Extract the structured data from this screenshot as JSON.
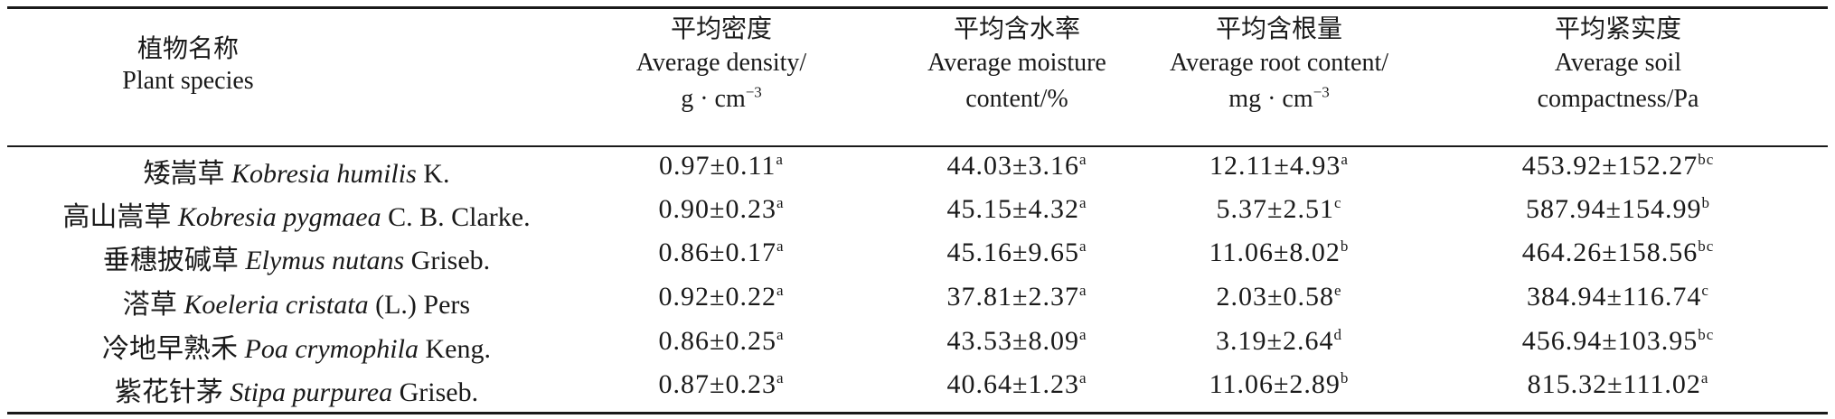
{
  "header": {
    "col0": {
      "zh": "植物名称",
      "en": "Plant species"
    },
    "col1": {
      "zh": "平均密度",
      "en1": "Average density/",
      "en2": "g · cm",
      "sup": "−3"
    },
    "col2": {
      "zh": "平均含水率",
      "en1": "Average moisture",
      "en2": "content/%"
    },
    "col3": {
      "zh": "平均含根量",
      "en1": "Average root content/",
      "en2": "mg · cm",
      "sup": "−3"
    },
    "col4": {
      "zh": "平均紧实度",
      "en1": "Average soil",
      "en2": "compactness/Pa"
    }
  },
  "rows": [
    {
      "zh": "矮嵩草",
      "latin": "Kobresia humilis",
      "author": "K.",
      "density": "0.97±0.11",
      "density_sig": "a",
      "moisture": "44.03±3.16",
      "moisture_sig": "a",
      "root": "12.11±4.93",
      "root_sig": "a",
      "compact": "453.92±152.27",
      "compact_sig": "bc"
    },
    {
      "zh": "高山嵩草",
      "latin": "Kobresia pygmaea",
      "author": "C. B. Clarke.",
      "density": "0.90±0.23",
      "density_sig": "a",
      "moisture": "45.15±4.32",
      "moisture_sig": "a",
      "root": "5.37±2.51",
      "root_sig": "c",
      "compact": "587.94±154.99",
      "compact_sig": "b"
    },
    {
      "zh": "垂穗披碱草",
      "latin": "Elymus nutans",
      "author": "Griseb.",
      "density": "0.86±0.17",
      "density_sig": "a",
      "moisture": "45.16±9.65",
      "moisture_sig": "a",
      "root": "11.06±8.02",
      "root_sig": "b",
      "compact": "464.26±158.56",
      "compact_sig": "bc"
    },
    {
      "zh": "溚草",
      "latin": "Koeleria cristata",
      "author": "(L.) Pers",
      "density": "0.92±0.22",
      "density_sig": "a",
      "moisture": "37.81±2.37",
      "moisture_sig": "a",
      "root": "2.03±0.58",
      "root_sig": "e",
      "compact": "384.94±116.74",
      "compact_sig": "c"
    },
    {
      "zh": "冷地早熟禾",
      "latin": "Poa crymophila",
      "author": "Keng.",
      "density": "0.86±0.25",
      "density_sig": "a",
      "moisture": "43.53±8.09",
      "moisture_sig": "a",
      "root": "3.19±2.64",
      "root_sig": "d",
      "compact": "456.94±103.95",
      "compact_sig": "bc"
    },
    {
      "zh": "紫花针茅",
      "latin": "Stipa purpurea",
      "author": "Griseb.",
      "density": "0.87±0.23",
      "density_sig": "a",
      "moisture": "40.64±1.23",
      "moisture_sig": "a",
      "root": "11.06±2.89",
      "root_sig": "b",
      "compact": "815.32±111.02",
      "compact_sig": "a"
    }
  ]
}
